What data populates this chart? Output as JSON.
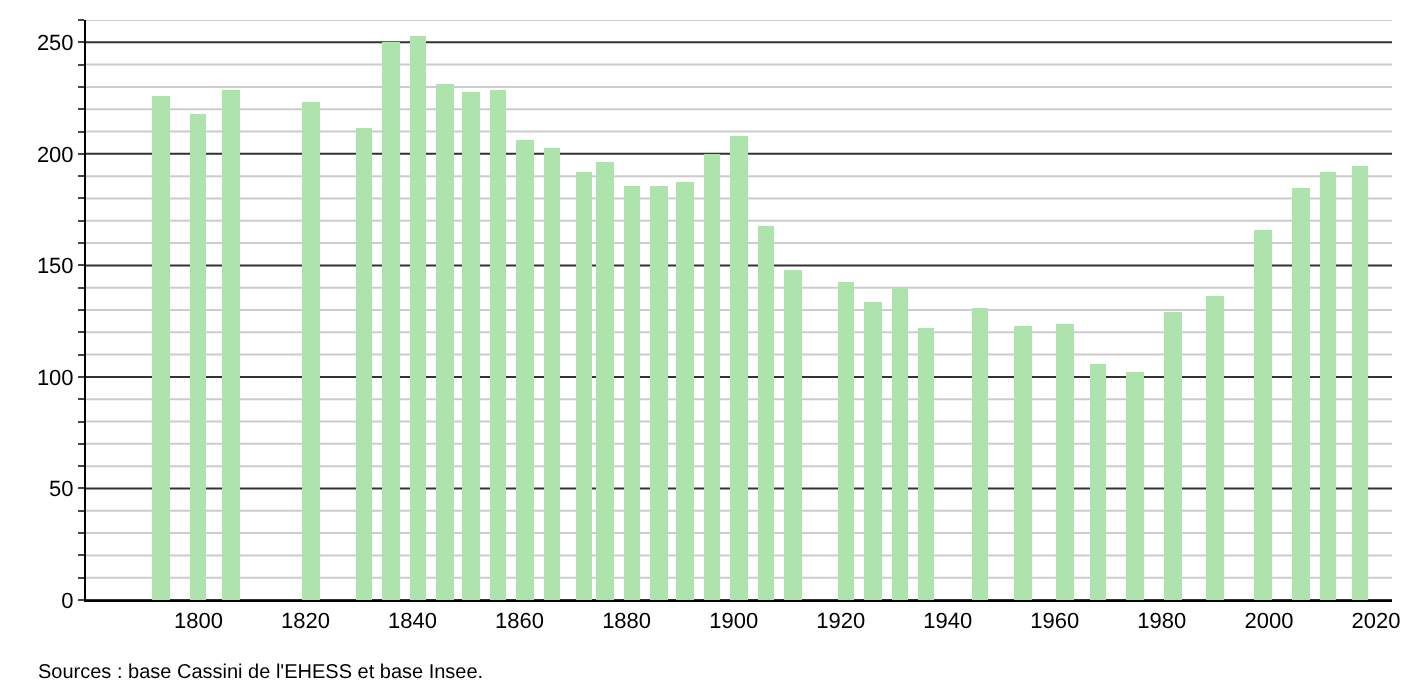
{
  "chart_data": {
    "type": "bar",
    "color": "#aee3ae",
    "x": [
      1793,
      1800,
      1806,
      1821,
      1831,
      1836,
      1841,
      1846,
      1851,
      1856,
      1861,
      1866,
      1872,
      1876,
      1881,
      1886,
      1891,
      1896,
      1901,
      1906,
      1911,
      1921,
      1926,
      1931,
      1936,
      1946,
      1954,
      1962,
      1968,
      1975,
      1982,
      1990,
      1999,
      2006,
      2011,
      2017
    ],
    "values": [
      226,
      218,
      229,
      223,
      212,
      250,
      253,
      231,
      228,
      229,
      206,
      203,
      192,
      196,
      186,
      186,
      187,
      200,
      208,
      168,
      148,
      143,
      134,
      140,
      122,
      131,
      123,
      124,
      106,
      102,
      129,
      136,
      166,
      185,
      192,
      195
    ],
    "xlim": [
      1779,
      2023
    ],
    "xticks": [
      1800,
      1820,
      1840,
      1860,
      1880,
      1900,
      1920,
      1940,
      1960,
      1980,
      2000,
      2020
    ],
    "ylim": [
      0,
      260
    ],
    "yticks": [
      0,
      {
        "value": 10,
        "label": null
      },
      {
        "value": 20,
        "label": null
      },
      {
        "value": 30,
        "label": null
      },
      {
        "value": 40,
        "label": null
      },
      50,
      {
        "value": 60,
        "label": null
      },
      {
        "value": 70,
        "label": null
      },
      {
        "value": 80,
        "label": null
      },
      {
        "value": 90,
        "label": null
      },
      100,
      {
        "value": 110,
        "label": null
      },
      {
        "value": 120,
        "label": null
      },
      {
        "value": 130,
        "label": null
      },
      {
        "value": 140,
        "label": null
      },
      150,
      {
        "value": 160,
        "label": null
      },
      {
        "value": 170,
        "label": null
      },
      {
        "value": 180,
        "label": null
      },
      {
        "value": 190,
        "label": null
      },
      200,
      {
        "value": 210,
        "label": null
      },
      {
        "value": 220,
        "label": null
      },
      {
        "value": 230,
        "label": null
      },
      {
        "value": 240,
        "label": null
      },
      250,
      {
        "value": 260,
        "label": null
      }
    ],
    "grid": true,
    "annotations": [
      "Sources : base Cassini de l'EHESS et base Insee."
    ]
  }
}
